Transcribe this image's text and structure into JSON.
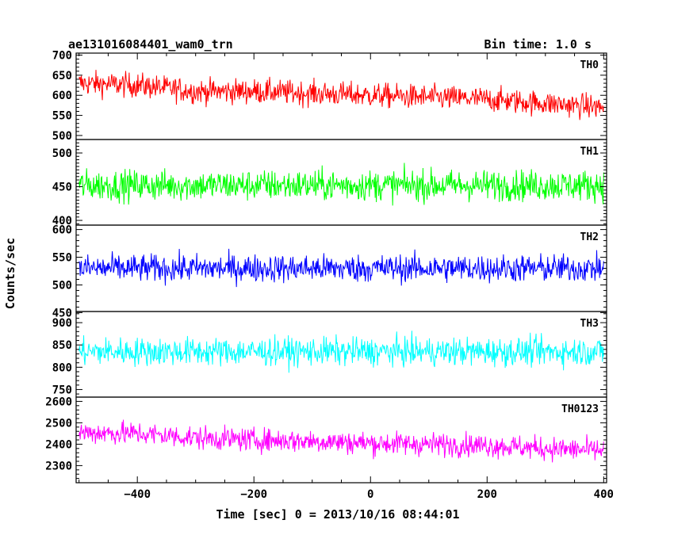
{
  "chart_data": {
    "type": "line",
    "title": "ae131016084401_wam0_trn",
    "subtitle": "Bin time: 1.0 s",
    "xlabel": "Time [sec] 0 = 2013/10/16 08:44:01",
    "ylabel": "Counts/sec",
    "xlim": [
      -505,
      405
    ],
    "x_ticks": [
      -400,
      -200,
      0,
      200,
      400
    ],
    "x_tick_labels": [
      "−400",
      "−200",
      "0",
      "200",
      "400"
    ],
    "grid": false,
    "x_start": -500,
    "x_end": 400,
    "panels": [
      {
        "name": "TH0",
        "color": "#ff0000",
        "ylim": [
          490,
          705
        ],
        "y_ticks": [
          500,
          550,
          600,
          650,
          700
        ],
        "trend": [
          [
            -500,
            630
          ],
          [
            -400,
            625
          ],
          [
            -300,
            610
          ],
          [
            -200,
            610
          ],
          [
            -100,
            605
          ],
          [
            0,
            600
          ],
          [
            100,
            595
          ],
          [
            200,
            590
          ],
          [
            300,
            580
          ],
          [
            400,
            570
          ]
        ],
        "noise_amplitude": 28
      },
      {
        "name": "TH1",
        "color": "#00ff00",
        "ylim": [
          393,
          520
        ],
        "y_ticks": [
          400,
          450,
          500
        ],
        "trend": [
          [
            -500,
            452
          ],
          [
            400,
            452
          ]
        ],
        "noise_amplitude": 21
      },
      {
        "name": "TH2",
        "color": "#0000ff",
        "ylim": [
          452,
          608
        ],
        "y_ticks": [
          450,
          500,
          550,
          600
        ],
        "trend": [
          [
            -500,
            530
          ],
          [
            400,
            530
          ]
        ],
        "noise_amplitude": 23
      },
      {
        "name": "TH3",
        "color": "#00ffff",
        "ylim": [
          733,
          925
        ],
        "y_ticks": [
          750,
          800,
          850,
          900
        ],
        "trend": [
          [
            -500,
            835
          ],
          [
            400,
            835
          ]
        ],
        "noise_amplitude": 29
      },
      {
        "name": "TH0123",
        "color": "#ff00ff",
        "ylim": [
          2220,
          2620
        ],
        "y_ticks": [
          2300,
          2400,
          2500,
          2600
        ],
        "trend": [
          [
            -500,
            2455
          ],
          [
            -400,
            2450
          ],
          [
            -300,
            2430
          ],
          [
            -200,
            2420
          ],
          [
            -100,
            2415
          ],
          [
            0,
            2405
          ],
          [
            100,
            2400
          ],
          [
            200,
            2395
          ],
          [
            300,
            2380
          ],
          [
            400,
            2370
          ]
        ],
        "noise_amplitude": 50
      }
    ]
  }
}
